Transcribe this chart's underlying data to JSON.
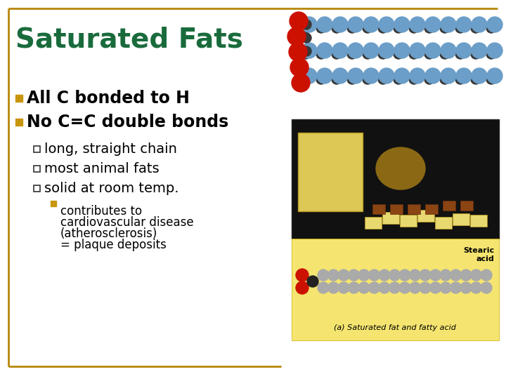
{
  "title": "Saturated Fats",
  "title_color": "#1a6b3c",
  "title_fontsize": 28,
  "background_color": "#ffffff",
  "border_color": "#b8860b",
  "bullet1_color": "#c8960c",
  "bullet2_color": "#c8960c",
  "sub_bullet_color": "#2e7d32",
  "sub_sub_bullet_color": "#c8960c",
  "bullet1_text": "All C bonded to H",
  "bullet2_text": "No C=C double bonds",
  "sub_bullets": [
    "long, straight chain",
    "most animal fats",
    "solid at room temp."
  ],
  "sub_sub_bullet_lines": [
    "contributes to",
    "cardiovascular disease",
    "(atherosclerosis)",
    "= plaque deposits"
  ],
  "text_color": "#000000",
  "bullet_fontsize": 17,
  "sub_bullet_fontsize": 14,
  "sub_sub_fontsize": 12,
  "blue_sphere": "#6b9ec8",
  "dark_sphere": "#383838",
  "red_sphere": "#cc1100",
  "gray_sphere": "#aaaaaa",
  "yellow_bg": "#f5e570"
}
